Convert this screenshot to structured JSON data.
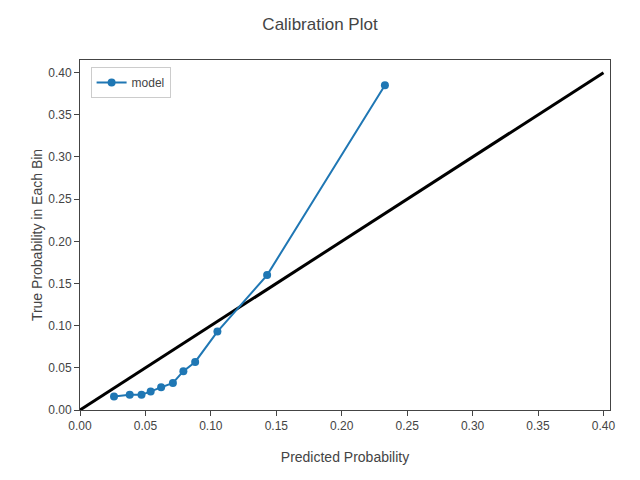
{
  "chart_data": {
    "type": "line",
    "title": "Calibration Plot",
    "x_label": "Predicted Probability",
    "y_label": "True Probability in Each Bin",
    "series": [
      {
        "type": "line",
        "color": "black",
        "line_style": "solid",
        "x": [
          0.0,
          0.4
        ],
        "values": [
          0.0,
          0.4
        ]
      },
      {
        "name": "model",
        "type": "line",
        "color": "#1f77b4",
        "marker": "circle",
        "line_style": "solid",
        "x": [
          0.026,
          0.038,
          0.047,
          0.054,
          0.062,
          0.071,
          0.079,
          0.088,
          0.105,
          0.143,
          0.233
        ],
        "values": [
          0.016,
          0.018,
          0.018,
          0.022,
          0.027,
          0.032,
          0.046,
          0.057,
          0.093,
          0.16,
          0.385
        ]
      }
    ],
    "xlim": [
      0.0,
      0.405
    ],
    "ylim": [
      0.0,
      0.415
    ],
    "xticks": [
      {
        "value": 0.0,
        "label": "0.00"
      },
      0.05,
      {
        "value": 0.1,
        "label": "0.10"
      },
      0.15,
      {
        "value": 0.2,
        "label": "0.20"
      },
      0.25,
      {
        "value": 0.3,
        "label": "0.30"
      },
      0.35,
      {
        "value": 0.4,
        "label": "0.40"
      }
    ],
    "yticks": [
      {
        "value": 0.0,
        "label": "0.00"
      },
      0.05,
      {
        "value": 0.1,
        "label": "0.10"
      },
      0.15,
      {
        "value": 0.2,
        "label": "0.20"
      },
      0.25,
      {
        "value": 0.3,
        "label": "0.30"
      },
      0.35,
      {
        "value": 0.4,
        "label": "0.40"
      }
    ],
    "grid": false,
    "legend": "upper left"
  }
}
